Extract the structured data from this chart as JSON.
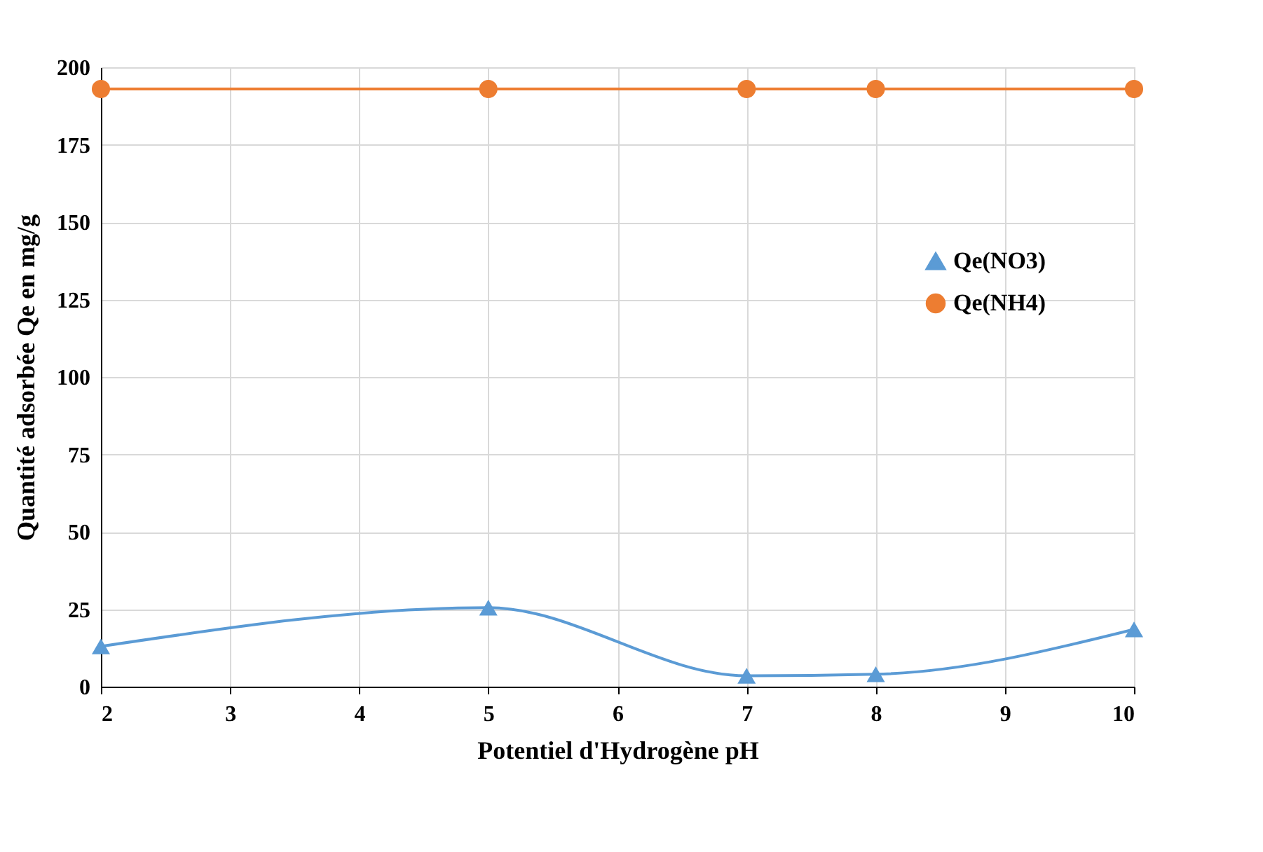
{
  "chart_data": {
    "type": "line",
    "xlabel": "Potentiel d'Hydrogène pH",
    "ylabel": "Quantité adsorbée Qe en mg/g",
    "x": [
      2,
      5,
      7,
      8,
      10
    ],
    "series": [
      {
        "name": "Qe(NO3)",
        "color": "#5b9bd5",
        "marker": "triangle",
        "values": [
          13,
          25.5,
          3.5,
          4,
          18.5
        ]
      },
      {
        "name": "Qe(NH4)",
        "color": "#ed7d31",
        "marker": "circle",
        "values": [
          193,
          193,
          193,
          193,
          193
        ]
      }
    ],
    "xlim": [
      2,
      10
    ],
    "xticks": [
      2,
      3,
      4,
      5,
      6,
      7,
      8,
      9,
      10
    ],
    "ylim": [
      0,
      200
    ],
    "yticks": [
      0,
      25,
      50,
      75,
      100,
      125,
      150,
      175,
      200
    ],
    "grid": true,
    "legend": "right"
  }
}
